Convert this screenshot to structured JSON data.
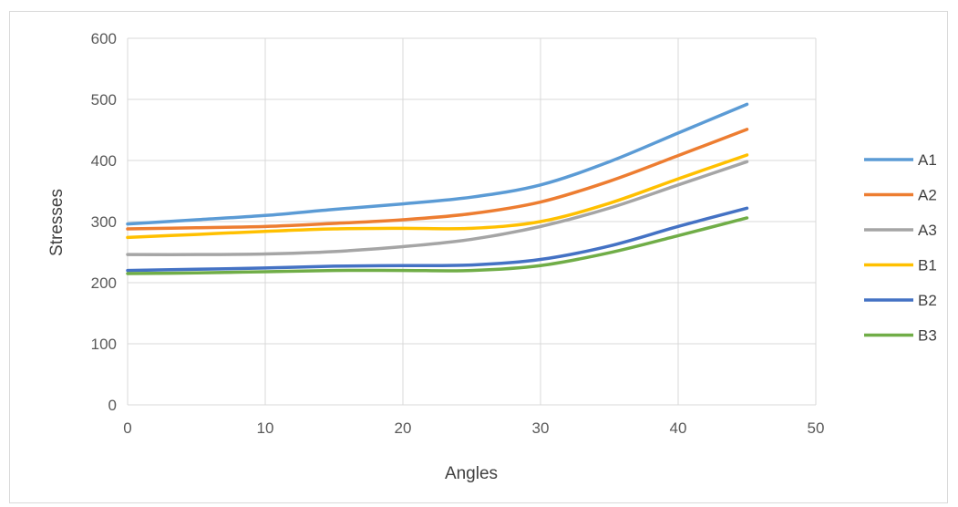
{
  "chart_data": {
    "type": "line",
    "title": "",
    "xlabel": "Angles",
    "ylabel": "Stresses",
    "xlim": [
      0,
      50
    ],
    "ylim": [
      0,
      600
    ],
    "xticks": [
      0,
      10,
      20,
      30,
      40,
      50
    ],
    "yticks": [
      0,
      100,
      200,
      300,
      400,
      500,
      600
    ],
    "grid": true,
    "legend_position": "right",
    "smooth": true,
    "x": [
      0,
      5,
      10,
      15,
      20,
      25,
      30,
      35,
      40,
      45
    ],
    "series": [
      {
        "name": "A1",
        "color": "#5b9bd5",
        "values": [
          296,
          303,
          310,
          320,
          329,
          340,
          360,
          398,
          445,
          492
        ]
      },
      {
        "name": "A2",
        "color": "#ed7d31",
        "values": [
          288,
          290,
          292,
          297,
          303,
          313,
          332,
          366,
          408,
          451
        ]
      },
      {
        "name": "A3",
        "color": "#a5a5a5",
        "values": [
          246,
          246,
          247,
          251,
          259,
          271,
          292,
          322,
          360,
          398
        ]
      },
      {
        "name": "B1",
        "color": "#ffc000",
        "values": [
          274,
          279,
          284,
          288,
          289,
          289,
          300,
          330,
          370,
          409
        ]
      },
      {
        "name": "B2",
        "color": "#4472c4",
        "values": [
          220,
          222,
          224,
          227,
          228,
          229,
          238,
          260,
          292,
          322
        ]
      },
      {
        "name": "B3",
        "color": "#70ad47",
        "values": [
          215,
          216,
          218,
          220,
          220,
          220,
          228,
          249,
          277,
          306
        ]
      }
    ]
  }
}
